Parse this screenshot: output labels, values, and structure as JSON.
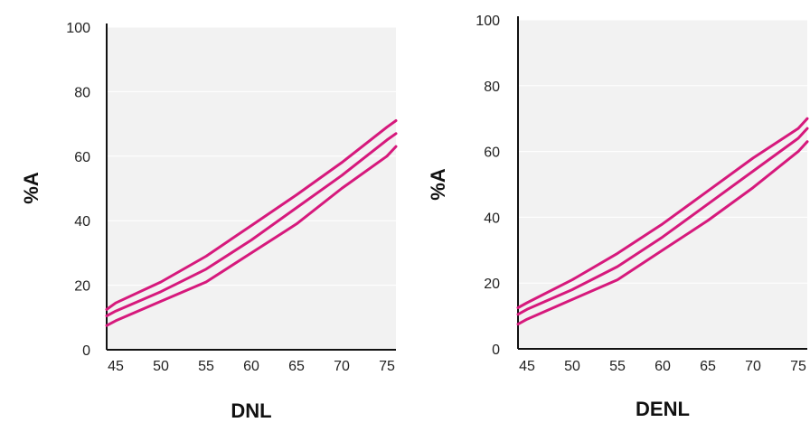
{
  "colors": {
    "plot_bg": "#f2f2f2",
    "grid": "#ffffff",
    "axis": "#111111",
    "line": "#d6197c"
  },
  "chart_data": [
    {
      "type": "line",
      "title": "",
      "xlabel": "DNL",
      "ylabel": "%A",
      "xlim": [
        44,
        76
      ],
      "ylim": [
        0,
        100
      ],
      "xticks": [
        45,
        50,
        55,
        60,
        65,
        70,
        75
      ],
      "yticks": [
        0,
        20,
        40,
        60,
        80,
        100
      ],
      "grid": true,
      "series": [
        {
          "x": [
            44,
            45,
            50,
            55,
            60,
            65,
            70,
            75,
            76
          ],
          "y": [
            12.5,
            14.5,
            21,
            29,
            38.5,
            48,
            58,
            69,
            71
          ]
        },
        {
          "x": [
            44,
            45,
            50,
            55,
            60,
            65,
            70,
            75,
            76
          ],
          "y": [
            10.5,
            12,
            18,
            25,
            34,
            44,
            54,
            65,
            67
          ]
        },
        {
          "x": [
            44,
            45,
            50,
            55,
            60,
            65,
            70,
            75,
            76
          ],
          "y": [
            7.5,
            9,
            15,
            21,
            30,
            39,
            50,
            60,
            63
          ]
        }
      ]
    },
    {
      "type": "line",
      "title": "",
      "xlabel": "DENL",
      "ylabel": "%A",
      "xlim": [
        44,
        76
      ],
      "ylim": [
        0,
        100
      ],
      "xticks": [
        45,
        50,
        55,
        60,
        65,
        70,
        75
      ],
      "yticks": [
        0,
        20,
        40,
        60,
        80,
        100
      ],
      "grid": true,
      "series": [
        {
          "x": [
            44,
            45,
            50,
            55,
            60,
            65,
            70,
            75,
            76
          ],
          "y": [
            12.5,
            14,
            21,
            29,
            38,
            48,
            58,
            67,
            70
          ]
        },
        {
          "x": [
            44,
            45,
            50,
            55,
            60,
            65,
            70,
            75,
            76
          ],
          "y": [
            10.5,
            12,
            18,
            25,
            34,
            44,
            54,
            64,
            67
          ]
        },
        {
          "x": [
            44,
            45,
            50,
            55,
            60,
            65,
            70,
            75,
            76
          ],
          "y": [
            7.5,
            9,
            15,
            21,
            30,
            39,
            49,
            60,
            63
          ]
        }
      ]
    }
  ]
}
